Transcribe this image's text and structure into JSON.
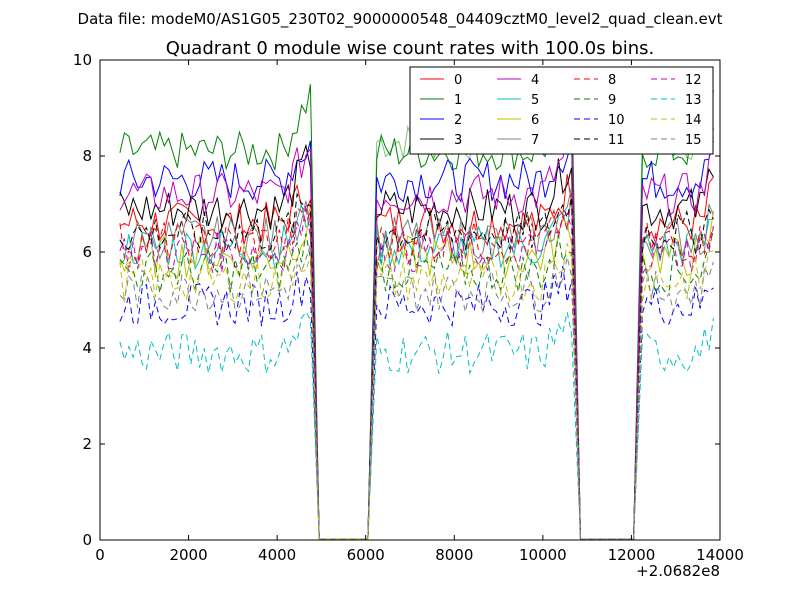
{
  "chart_data": {
    "type": "line",
    "suptitle": "Data file: modeM0/AS1G05_230T02_9000000548_04409cztM0_level2_quad_clean.evt",
    "title": "Quadrant 0 module wise count rates with 100.0s bins.",
    "xlabel": "",
    "ylabel": "",
    "x_offset_label": "+2.0682e8",
    "xlim": [
      0,
      14000
    ],
    "ylim": [
      0,
      10
    ],
    "x_ticks": [
      0,
      2000,
      4000,
      6000,
      8000,
      10000,
      12000,
      14000
    ],
    "y_ticks": [
      0,
      2,
      4,
      6,
      8,
      10
    ],
    "x_tick_labels": [
      "0",
      "2000",
      "4000",
      "6000",
      "8000",
      "10000",
      "12000",
      "14000"
    ],
    "y_tick_labels": [
      "0",
      "2",
      "4",
      "6",
      "8",
      "10"
    ],
    "grid": false,
    "legend": {
      "placement": "top-right",
      "columns": 4
    },
    "segments": [
      {
        "start": 450,
        "end": 4750,
        "step": 100
      },
      {
        "start": 6250,
        "end": 10650,
        "step": 100
      },
      {
        "start": 12250,
        "end": 13850,
        "step": 100
      }
    ],
    "gaps": [
      [
        4950,
        6050
      ],
      [
        10850,
        11950
      ]
    ],
    "series": [
      {
        "name": "0",
        "color": "#ff0000",
        "dash": "solid",
        "mean": 6.6,
        "end_rise": 7.4
      },
      {
        "name": "1",
        "color": "#008000",
        "dash": "solid",
        "mean": 8.1,
        "end_rise": 9.3
      },
      {
        "name": "2",
        "color": "#0000ff",
        "dash": "solid",
        "mean": 7.5,
        "end_rise": 8.3
      },
      {
        "name": "3",
        "color": "#000000",
        "dash": "solid",
        "mean": 6.9,
        "end_rise": 8.0
      },
      {
        "name": "4",
        "color": "#bf00bf",
        "dash": "solid",
        "mean": 7.2,
        "end_rise": 8.2
      },
      {
        "name": "5",
        "color": "#00bfbf",
        "dash": "solid",
        "mean": 6.1,
        "end_rise": 6.9
      },
      {
        "name": "6",
        "color": "#bfbf00",
        "dash": "solid",
        "mean": 5.9,
        "end_rise": 6.6
      },
      {
        "name": "7",
        "color": "#808080",
        "dash": "solid",
        "mean": 6.3,
        "end_rise": 7.0
      },
      {
        "name": "8",
        "color": "#ff0000",
        "dash": "dashed",
        "mean": 6.2,
        "end_rise": 6.8
      },
      {
        "name": "9",
        "color": "#008000",
        "dash": "dashed",
        "mean": 5.6,
        "end_rise": 6.3
      },
      {
        "name": "10",
        "color": "#0000ff",
        "dash": "dashed",
        "mean": 4.9,
        "end_rise": 5.5
      },
      {
        "name": "11",
        "color": "#000000",
        "dash": "dashed",
        "mean": 6.4,
        "end_rise": 7.1
      },
      {
        "name": "12",
        "color": "#bf00bf",
        "dash": "dashed",
        "mean": 6.0,
        "end_rise": 6.7
      },
      {
        "name": "13",
        "color": "#00bfbf",
        "dash": "dashed",
        "mean": 3.9,
        "end_rise": 4.6
      },
      {
        "name": "14",
        "color": "#bfbf00",
        "dash": "dashed",
        "mean": 5.4,
        "end_rise": 6.1
      },
      {
        "name": "15",
        "color": "#808080",
        "dash": "dashed",
        "mean": 5.2,
        "end_rise": 5.9
      }
    ],
    "extra_series": [
      {
        "color": "#7fbf7f",
        "dash": "solid",
        "mean": 8.3,
        "end_rise": 8.5,
        "segments_only": [
          1,
          2
        ]
      }
    ]
  }
}
